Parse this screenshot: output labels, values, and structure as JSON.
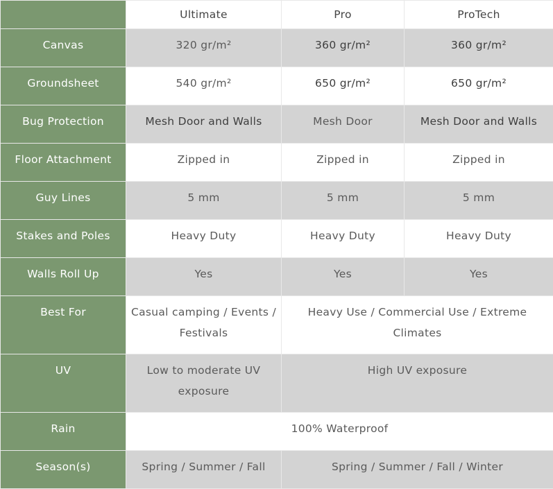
{
  "columns": [
    "Ultimate",
    "Pro",
    "ProTech"
  ],
  "rows": [
    {
      "label": "Canvas",
      "cells": [
        "320 gr/m²",
        "360 gr/m²",
        "360 gr/m²"
      ]
    },
    {
      "label": "Groundsheet",
      "cells": [
        "540 gr/m²",
        "650 gr/m²",
        "650 gr/m²"
      ]
    },
    {
      "label": "Bug Protection",
      "cells": [
        "Mesh Door and Walls",
        "Mesh Door",
        "Mesh Door and Walls"
      ]
    },
    {
      "label": "Floor Attachment",
      "cells": [
        "Zipped in",
        "Zipped in",
        "Zipped in"
      ]
    },
    {
      "label": "Guy Lines",
      "cells": [
        "5 mm",
        "5 mm",
        "5 mm"
      ]
    },
    {
      "label": "Stakes and Poles",
      "cells": [
        "Heavy Duty",
        "Heavy Duty",
        "Heavy Duty"
      ]
    },
    {
      "label": "Walls Roll Up",
      "cells": [
        "Yes",
        "Yes",
        "Yes"
      ]
    },
    {
      "label": "Best For",
      "cells": [
        "Casual camping / Events / Festivals",
        "Heavy Use / Commercial Use / Extreme Climates"
      ]
    },
    {
      "label": "UV",
      "cells": [
        "Low to moderate UV exposure",
        "High UV exposure"
      ]
    },
    {
      "label": "Rain",
      "cells": [
        "100% Waterproof"
      ]
    },
    {
      "label": "Season(s)",
      "cells": [
        "Spring / Summer / Fall",
        "Spring / Summer / Fall / Winter"
      ]
    }
  ],
  "colors": {
    "header_green": "#7b9870",
    "stripe_gray": "#d3d3d3"
  }
}
